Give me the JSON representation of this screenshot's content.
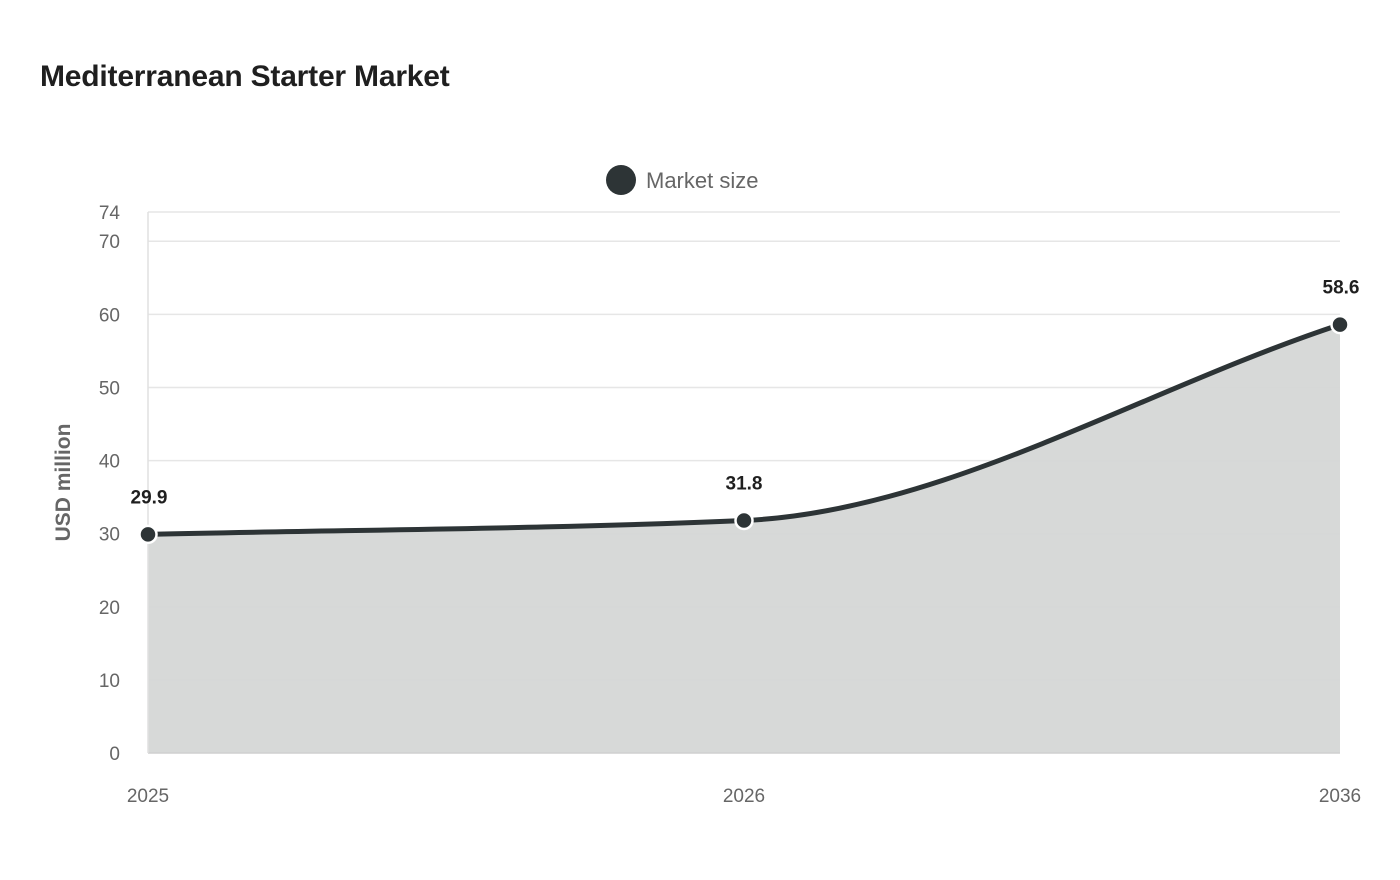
{
  "chart_data": {
    "type": "area",
    "title": "Mediterranean Starter Market",
    "categories": [
      "2025",
      "2026",
      "2036"
    ],
    "series": [
      {
        "name": "Market size",
        "values": [
          29.9,
          31.8,
          58.6
        ],
        "data_labels": [
          "29.9",
          "31.8",
          "58.6"
        ]
      }
    ],
    "xlabel": "",
    "ylabel": "USD million",
    "ylim": [
      0,
      74
    ],
    "yticks": [
      0,
      10,
      20,
      30,
      40,
      50,
      60,
      70,
      74
    ],
    "grid": true,
    "legend_position": "top-center",
    "colors": {
      "line": "#2d3436",
      "area": "#d5d7d6",
      "grid": "#e6e6e6",
      "marker_stroke": "#ffffff"
    }
  }
}
